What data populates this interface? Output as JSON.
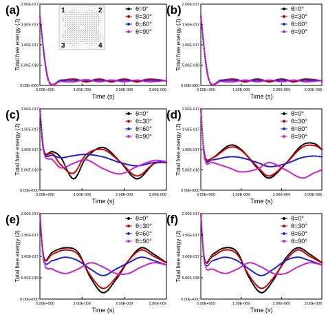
{
  "chart_data": [
    {
      "panel": "(a)",
      "type": "scatter",
      "xlabel": "Time (s)",
      "ylabel": "Total free energy (J)",
      "xlim": [
        0,
        3e-09
      ],
      "ylim": [
        0,
        2e-17
      ],
      "x_ticks": [
        "0.00E+000",
        "1.00E-009",
        "2.00E-009",
        "3.00E-009"
      ],
      "y_ticks": [
        "0.00E+000",
        "5.00E-018",
        "1.00E-017",
        "1.50E-017",
        "2.00E-017"
      ],
      "legend": [
        "θ=0°",
        "θ=30°",
        "θ=60°",
        "θ=90°"
      ],
      "legend_position": "top-right",
      "inset": {
        "labels": [
          "1",
          "2",
          "3",
          "4"
        ]
      },
      "series": [
        {
          "name": "θ=0°",
          "color": "#000000",
          "x": [
            0,
            2e-10,
            5e-10,
            8e-10,
            1.1e-09,
            1.4e-09,
            1.7e-09,
            2e-09,
            2.3e-09,
            2.6e-09,
            3e-09
          ],
          "y": [
            1.7e-17,
            1.3e-18,
            1.2e-18,
            1.6e-18,
            9e-19,
            1.5e-18,
            9e-19,
            1.6e-18,
            9e-19,
            1.5e-18,
            1.1e-18
          ]
        },
        {
          "name": "θ=30°",
          "color": "#cc0000",
          "x": [
            0,
            2e-10,
            5e-10,
            8e-10,
            1.1e-09,
            1.4e-09,
            1.7e-09,
            2e-09,
            2.3e-09,
            2.6e-09,
            3e-09
          ],
          "y": [
            1.7e-17,
            1.3e-18,
            1.1e-18,
            1.6e-18,
            9e-19,
            1.6e-18,
            9e-19,
            1.6e-18,
            9e-19,
            1.6e-18,
            1.1e-18
          ]
        },
        {
          "name": "θ=60°",
          "color": "#1f1fcc",
          "x": [
            0,
            2e-10,
            5e-10,
            8e-10,
            1.1e-09,
            1.4e-09,
            1.7e-09,
            2e-09,
            2.3e-09,
            2.6e-09,
            3e-09
          ],
          "y": [
            1.7e-17,
            1.4e-18,
            1.3e-18,
            1.3e-18,
            1.2e-18,
            1.3e-18,
            1.2e-18,
            1.3e-18,
            1.2e-18,
            1.3e-18,
            1.2e-18
          ]
        },
        {
          "name": "θ=90°",
          "color": "#cc22cc",
          "x": [
            0,
            2e-10,
            5e-10,
            8e-10,
            1.1e-09,
            1.4e-09,
            1.7e-09,
            2e-09,
            2.3e-09,
            2.6e-09,
            3e-09
          ],
          "y": [
            1.7e-17,
            1.5e-18,
            1e-18,
            9e-19,
            1.4e-18,
            9e-19,
            1.3e-18,
            9e-19,
            1.3e-18,
            9e-19,
            1.2e-18
          ]
        }
      ]
    },
    {
      "panel": "(b)",
      "type": "scatter",
      "xlabel": "Time (s)",
      "ylabel": "Total free energy (J)",
      "xlim": [
        0,
        3e-09
      ],
      "ylim": [
        0,
        2e-17
      ],
      "x_ticks": [
        "0.00E+000",
        "1.00E-009",
        "2.00E-009",
        "3.00E-009"
      ],
      "y_ticks": [
        "0.00E+000",
        "5.00E-018",
        "1.00E-017",
        "1.50E-017",
        "2.00E-017"
      ],
      "legend": [
        "θ=0°",
        "θ=30°",
        "θ=60°",
        "θ=90°"
      ],
      "legend_position": "top-right",
      "series": [
        {
          "name": "θ=0°",
          "color": "#000000",
          "x": [
            0,
            2e-10,
            5e-10,
            8e-10,
            1.1e-09,
            1.4e-09,
            1.7e-09,
            2e-09,
            2.3e-09,
            2.6e-09,
            3e-09
          ],
          "y": [
            1.7e-17,
            1.3e-18,
            1.2e-18,
            1.6e-18,
            9e-19,
            1.6e-18,
            9e-19,
            1.6e-18,
            9e-19,
            1.6e-18,
            1.1e-18
          ]
        },
        {
          "name": "θ=30°",
          "color": "#cc0000",
          "x": [
            0,
            2e-10,
            5e-10,
            8e-10,
            1.1e-09,
            1.4e-09,
            1.7e-09,
            2e-09,
            2.3e-09,
            2.6e-09,
            3e-09
          ],
          "y": [
            1.7e-17,
            1.3e-18,
            1.1e-18,
            1.6e-18,
            9e-19,
            1.5e-18,
            9e-19,
            1.5e-18,
            9e-19,
            1.5e-18,
            1.1e-18
          ]
        },
        {
          "name": "θ=60°",
          "color": "#1f1fcc",
          "x": [
            0,
            2e-10,
            5e-10,
            8e-10,
            1.1e-09,
            1.4e-09,
            1.7e-09,
            2e-09,
            2.3e-09,
            2.6e-09,
            3e-09
          ],
          "y": [
            1.7e-17,
            1.4e-18,
            1.3e-18,
            1.3e-18,
            1.2e-18,
            1.3e-18,
            1.2e-18,
            1.3e-18,
            1.2e-18,
            1.3e-18,
            1.2e-18
          ]
        },
        {
          "name": "θ=90°",
          "color": "#cc22cc",
          "x": [
            0,
            2e-10,
            5e-10,
            8e-10,
            1.1e-09,
            1.4e-09,
            1.7e-09,
            2e-09,
            2.3e-09,
            2.6e-09,
            3e-09
          ],
          "y": [
            1.7e-17,
            1.5e-18,
            1e-18,
            9e-19,
            1.3e-18,
            9e-19,
            1.3e-18,
            9e-19,
            1.3e-18,
            9e-19,
            1.2e-18
          ]
        }
      ]
    },
    {
      "panel": "(c)",
      "type": "scatter",
      "xlabel": "Time (s)",
      "ylabel": "Total free energy (J)",
      "xlim": [
        0,
        3e-09
      ],
      "ylim": [
        0,
        2e-17
      ],
      "x_ticks": [
        "0.00E+000",
        "1.00E-009",
        "2.00E-009",
        "3.00E-009"
      ],
      "y_ticks": [
        "0.00E+000",
        "5.00E-018",
        "1.00E-017",
        "1.50E-017",
        "2.00E-017"
      ],
      "legend": [
        "θ=0°",
        "θ=30°",
        "θ=60°",
        "θ=90°"
      ],
      "legend_position": "top-right",
      "series": [
        {
          "name": "θ=0°",
          "color": "#000000",
          "x": [
            0,
            1e-10,
            3e-10,
            5e-10,
            8e-10,
            1.1e-09,
            1.5e-09,
            1.9e-09,
            2.3e-09,
            2.7e-09,
            3e-09
          ],
          "y": [
            2e-17,
            9.6e-18,
            9.5e-18,
            8e-18,
            2.8e-18,
            8e-18,
            1.05e-17,
            7e-18,
            2.8e-18,
            6.5e-18,
            7e-18
          ]
        },
        {
          "name": "θ=30°",
          "color": "#cc0000",
          "x": [
            0,
            1e-10,
            3e-10,
            5e-10,
            8e-10,
            1.1e-09,
            1.5e-09,
            1.9e-09,
            2.3e-09,
            2.7e-09,
            3e-09
          ],
          "y": [
            2e-17,
            9.5e-18,
            9e-18,
            6.2e-18,
            4.2e-18,
            8.8e-18,
            1e-17,
            7e-18,
            3.5e-18,
            6.5e-18,
            6.8e-18
          ]
        },
        {
          "name": "θ=60°",
          "color": "#1f1fcc",
          "x": [
            0,
            1e-10,
            3e-10,
            5e-10,
            8e-10,
            1.1e-09,
            1.5e-09,
            1.9e-09,
            2.3e-09,
            2.7e-09,
            3e-09
          ],
          "y": [
            2e-17,
            9.3e-18,
            8.6e-18,
            8e-18,
            8.5e-18,
            8.8e-18,
            8.2e-18,
            6.8e-18,
            6e-18,
            6.8e-18,
            7e-18
          ]
        },
        {
          "name": "θ=90°",
          "color": "#cc22cc",
          "x": [
            0,
            1e-10,
            3e-10,
            5e-10,
            8e-10,
            1.1e-09,
            1.5e-09,
            1.9e-09,
            2.3e-09,
            2.7e-09,
            3e-09
          ],
          "y": [
            2e-17,
            9e-18,
            7.5e-18,
            5.5e-18,
            6.6e-18,
            7.5e-18,
            5.3e-18,
            4e-18,
            5.8e-18,
            7.3e-18,
            7e-18
          ]
        }
      ]
    },
    {
      "panel": "(d)",
      "type": "scatter",
      "xlabel": "Time (s)",
      "ylabel": "Total free energy (J)",
      "xlim": [
        0,
        3e-09
      ],
      "ylim": [
        0,
        2e-17
      ],
      "x_ticks": [
        "0.00E+000",
        "1.00E-009",
        "2.00E-009",
        "3.00E-009"
      ],
      "y_ticks": [
        "0.00E+000",
        "5.00E-018",
        "1.00E-017",
        "1.50E-017",
        "2.00E-017"
      ],
      "legend": [
        "θ=0°",
        "θ=30°",
        "θ=60°",
        "θ=90°"
      ],
      "legend_position": "top-right",
      "series": [
        {
          "name": "θ=0°",
          "color": "#000000",
          "x": [
            0,
            1e-10,
            3e-10,
            7e-10,
            1e-09,
            1.4e-09,
            1.7e-09,
            2.1e-09,
            2.5e-09,
            2.8e-09,
            3e-09
          ],
          "y": [
            2e-17,
            8.5e-18,
            8e-18,
            1.1e-17,
            1e-17,
            5.5e-18,
            3e-18,
            6.5e-18,
            1.1e-17,
            1.15e-17,
            1e-17
          ]
        },
        {
          "name": "θ=30°",
          "color": "#cc0000",
          "x": [
            0,
            1e-10,
            3e-10,
            7e-10,
            1e-09,
            1.4e-09,
            1.7e-09,
            2.1e-09,
            2.5e-09,
            2.8e-09,
            3e-09
          ],
          "y": [
            2e-17,
            8.5e-18,
            8e-18,
            1.05e-17,
            9.8e-18,
            5.8e-18,
            3.5e-18,
            6.5e-18,
            1.05e-17,
            1.1e-17,
            1e-17
          ]
        },
        {
          "name": "θ=60°",
          "color": "#1f1fcc",
          "x": [
            0,
            1e-10,
            3e-10,
            7e-10,
            1e-09,
            1.4e-09,
            1.7e-09,
            2.1e-09,
            2.5e-09,
            2.8e-09,
            3e-09
          ],
          "y": [
            2e-17,
            8e-18,
            7.5e-18,
            8.2e-18,
            8e-18,
            6.8e-18,
            5.8e-18,
            6.5e-18,
            8e-18,
            8.4e-18,
            8.2e-18
          ]
        },
        {
          "name": "θ=90°",
          "color": "#cc22cc",
          "x": [
            0,
            1e-10,
            3e-10,
            7e-10,
            1e-09,
            1.4e-09,
            1.7e-09,
            2.1e-09,
            2.5e-09,
            2.8e-09,
            3e-09
          ],
          "y": [
            2e-17,
            7.5e-18,
            6.8e-18,
            5.5e-18,
            4.5e-18,
            5.2e-18,
            6.8e-18,
            5e-18,
            3e-18,
            4.2e-18,
            5e-18
          ]
        }
      ]
    },
    {
      "panel": "(e)",
      "type": "scatter",
      "xlabel": "Time (s)",
      "ylabel": "Total free energy (J)",
      "xlim": [
        0,
        3e-09
      ],
      "ylim": [
        0,
        2e-17
      ],
      "x_ticks": [
        "0.00E+000",
        "1.00E-009",
        "2.00E-009",
        "3.00E-009"
      ],
      "y_ticks": [
        "0.00E+000",
        "5.00E-018",
        "1.00E-017",
        "1.50E-017",
        "2.00E-017"
      ],
      "legend": [
        "θ=0°",
        "θ=30°",
        "θ=60°",
        "θ=90°"
      ],
      "legend_position": "top-right",
      "series": [
        {
          "name": "θ=0°",
          "color": "#000000",
          "x": [
            0,
            1e-10,
            3e-10,
            6e-10,
            9e-10,
            1.2e-09,
            1.5e-09,
            1.8e-09,
            2.1e-09,
            2.4e-09,
            2.7e-09,
            3e-09
          ],
          "y": [
            2e-17,
            9.5e-18,
            1.1e-17,
            1.2e-17,
            1.1e-17,
            5e-18,
            1.5e-18,
            4.5e-18,
            9e-18,
            1.2e-17,
            1.05e-17,
            8.5e-18
          ]
        },
        {
          "name": "θ=30°",
          "color": "#cc0000",
          "x": [
            0,
            1e-10,
            3e-10,
            6e-10,
            9e-10,
            1.2e-09,
            1.5e-09,
            1.8e-09,
            2.1e-09,
            2.4e-09,
            2.7e-09,
            3e-09
          ],
          "y": [
            2e-17,
            9.5e-18,
            1.05e-17,
            1.15e-17,
            1.05e-17,
            5.5e-18,
            2.5e-18,
            5e-18,
            9e-18,
            1.15e-17,
            1e-17,
            8.5e-18
          ]
        },
        {
          "name": "θ=60°",
          "color": "#1f1fcc",
          "x": [
            0,
            1e-10,
            3e-10,
            6e-10,
            9e-10,
            1.2e-09,
            1.5e-09,
            1.8e-09,
            2.1e-09,
            2.4e-09,
            2.7e-09,
            3e-09
          ],
          "y": [
            2e-17,
            9e-18,
            9e-18,
            9.8e-18,
            9e-18,
            7e-18,
            5.5e-18,
            7e-18,
            8.5e-18,
            9.8e-18,
            9e-18,
            8e-18
          ]
        },
        {
          "name": "θ=90°",
          "color": "#cc22cc",
          "x": [
            0,
            1e-10,
            3e-10,
            6e-10,
            9e-10,
            1.2e-09,
            1.5e-09,
            1.8e-09,
            2.1e-09,
            2.4e-09,
            2.7e-09,
            3e-09
          ],
          "y": [
            2e-17,
            8.5e-18,
            7e-18,
            6e-18,
            7e-18,
            8.5e-18,
            7.5e-18,
            6e-18,
            6e-18,
            7.5e-18,
            8.5e-18,
            8e-18
          ]
        }
      ]
    },
    {
      "panel": "(f)",
      "type": "scatter",
      "xlabel": "Time (s)",
      "ylabel": "Total free energy (J)",
      "xlim": [
        0,
        3e-09
      ],
      "ylim": [
        0,
        2e-17
      ],
      "x_ticks": [
        "0.00E+000",
        "1.00E-009",
        "2.00E-009",
        "3.00E-009"
      ],
      "y_ticks": [
        "0.00E+000",
        "5.00E-018",
        "1.00E-017",
        "1.50E-017",
        "2.00E-017"
      ],
      "legend": [
        "θ=0°",
        "θ=30°",
        "θ=60°",
        "θ=90°"
      ],
      "legend_position": "top-right",
      "series": [
        {
          "name": "θ=0°",
          "color": "#000000",
          "x": [
            0,
            1e-10,
            3e-10,
            6e-10,
            9e-10,
            1.2e-09,
            1.5e-09,
            1.8e-09,
            2.1e-09,
            2.4e-09,
            2.7e-09,
            3e-09
          ],
          "y": [
            2e-17,
            9e-18,
            1.05e-17,
            1.2e-17,
            1.1e-17,
            5e-18,
            1.5e-18,
            4.5e-18,
            9.5e-18,
            1.2e-17,
            1.05e-17,
            8.5e-18
          ]
        },
        {
          "name": "θ=30°",
          "color": "#cc0000",
          "x": [
            0,
            1e-10,
            3e-10,
            6e-10,
            9e-10,
            1.2e-09,
            1.5e-09,
            1.8e-09,
            2.1e-09,
            2.4e-09,
            2.7e-09,
            3e-09
          ],
          "y": [
            2e-17,
            9e-18,
            1e-17,
            1.15e-17,
            1.05e-17,
            5.5e-18,
            2.5e-18,
            5e-18,
            9e-18,
            1.15e-17,
            1e-17,
            8.5e-18
          ]
        },
        {
          "name": "θ=60°",
          "color": "#1f1fcc",
          "x": [
            0,
            1e-10,
            3e-10,
            6e-10,
            9e-10,
            1.2e-09,
            1.5e-09,
            1.8e-09,
            2.1e-09,
            2.4e-09,
            2.7e-09,
            3e-09
          ],
          "y": [
            2e-17,
            8.5e-18,
            9e-18,
            9.8e-18,
            9e-18,
            7e-18,
            5.5e-18,
            7e-18,
            9e-18,
            9.8e-18,
            9e-18,
            8e-18
          ]
        },
        {
          "name": "θ=90°",
          "color": "#cc22cc",
          "x": [
            0,
            1e-10,
            3e-10,
            6e-10,
            9e-10,
            1.2e-09,
            1.5e-09,
            1.8e-09,
            2.1e-09,
            2.4e-09,
            2.7e-09,
            3e-09
          ],
          "y": [
            2e-17,
            8e-18,
            7e-18,
            6e-18,
            7e-18,
            8.5e-18,
            7.5e-18,
            6e-18,
            6e-18,
            7.5e-18,
            8.5e-18,
            8e-18
          ]
        }
      ]
    }
  ]
}
